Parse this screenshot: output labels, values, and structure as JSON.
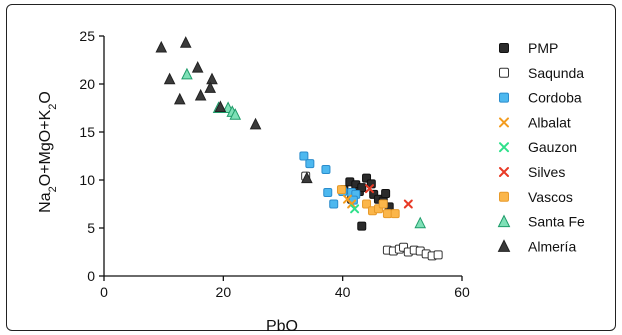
{
  "chart_data": {
    "type": "scatter",
    "xlabel": "PbO",
    "ylabel_parts": [
      "Na",
      "2",
      "O+MgO+K",
      "2",
      "O"
    ],
    "xlim": [
      0,
      60
    ],
    "ylim": [
      0,
      25
    ],
    "x_ticks": [
      0,
      20,
      40,
      60
    ],
    "y_ticks": [
      0,
      5,
      10,
      15,
      20,
      25
    ],
    "legend_placement": "right",
    "grid": false,
    "series": [
      {
        "name": "PMP",
        "marker": "square",
        "fill": "#2b2b2b",
        "stroke": "#111111",
        "points": [
          [
            40.2,
            9.0
          ],
          [
            41.2,
            9.8
          ],
          [
            42.2,
            9.5
          ],
          [
            42.8,
            8.8
          ],
          [
            43.2,
            9.2
          ],
          [
            44,
            10.2
          ],
          [
            44.8,
            9.6
          ],
          [
            45.2,
            8.5
          ],
          [
            46,
            8.0
          ],
          [
            46.8,
            7.8
          ],
          [
            47.2,
            8.6
          ],
          [
            47.8,
            7.2
          ],
          [
            43.2,
            5.2
          ],
          [
            42,
            8.6
          ],
          [
            41.5,
            8.0
          ]
        ]
      },
      {
        "name": "Saqunda",
        "marker": "square",
        "fill": "#ffffff",
        "stroke": "#333333",
        "points": [
          [
            33.8,
            10.4
          ],
          [
            47.5,
            2.7
          ],
          [
            48.5,
            2.6
          ],
          [
            49.5,
            2.8
          ],
          [
            50.2,
            3.0
          ],
          [
            51,
            2.5
          ],
          [
            52,
            2.7
          ],
          [
            53,
            2.6
          ],
          [
            54,
            2.3
          ],
          [
            55,
            2.1
          ],
          [
            56,
            2.2
          ]
        ]
      },
      {
        "name": "Cordoba",
        "marker": "square",
        "fill": "#4db8ef",
        "stroke": "#2a8ccc",
        "points": [
          [
            33.5,
            12.5
          ],
          [
            34.5,
            11.7
          ],
          [
            37.2,
            11.1
          ],
          [
            37.5,
            8.7
          ],
          [
            38.5,
            7.5
          ],
          [
            40,
            8.8
          ],
          [
            41.5,
            8.7
          ],
          [
            42.2,
            8.5
          ],
          [
            41.8,
            7.9
          ]
        ]
      },
      {
        "name": "Albalat",
        "marker": "x",
        "fill": "#f39c1f",
        "stroke": "#f39c1f",
        "points": [
          [
            40.8,
            8.0
          ],
          [
            41.5,
            7.5
          ]
        ]
      },
      {
        "name": "Gauzon",
        "marker": "x",
        "fill": "#2fe08a",
        "stroke": "#2fe08a",
        "points": [
          [
            42,
            7.0
          ]
        ]
      },
      {
        "name": "Silves",
        "marker": "x",
        "fill": "#e83a26",
        "stroke": "#e83a26",
        "points": [
          [
            44.5,
            9.1
          ],
          [
            51,
            7.5
          ]
        ]
      },
      {
        "name": "Vascos",
        "marker": "square",
        "fill": "#fbb64a",
        "stroke": "#e89a2a",
        "points": [
          [
            39.8,
            9.0
          ],
          [
            44,
            7.5
          ],
          [
            45,
            6.8
          ],
          [
            46,
            7.0
          ],
          [
            46.8,
            7.5
          ],
          [
            47.5,
            6.5
          ],
          [
            48.8,
            6.5
          ]
        ]
      },
      {
        "name": "Santa Fe",
        "marker": "triangle-up",
        "fill": "#7fe0b7",
        "stroke": "#1f9c6a",
        "points": [
          [
            13.9,
            21.0
          ],
          [
            19.2,
            17.5
          ],
          [
            20.8,
            17.5
          ],
          [
            21.5,
            17.1
          ],
          [
            22,
            16.8
          ],
          [
            53,
            5.5
          ]
        ]
      },
      {
        "name": "Almería",
        "marker": "triangle-up",
        "fill": "#3a3a3a",
        "stroke": "#222222",
        "points": [
          [
            9.6,
            23.8
          ],
          [
            13.7,
            24.3
          ],
          [
            11,
            20.5
          ],
          [
            15.7,
            21.7
          ],
          [
            16.2,
            18.8
          ],
          [
            18.1,
            20.5
          ],
          [
            17.8,
            19.6
          ],
          [
            12.7,
            18.4
          ],
          [
            19.5,
            17.6
          ],
          [
            25.4,
            15.8
          ],
          [
            34,
            10.2
          ]
        ]
      }
    ]
  }
}
